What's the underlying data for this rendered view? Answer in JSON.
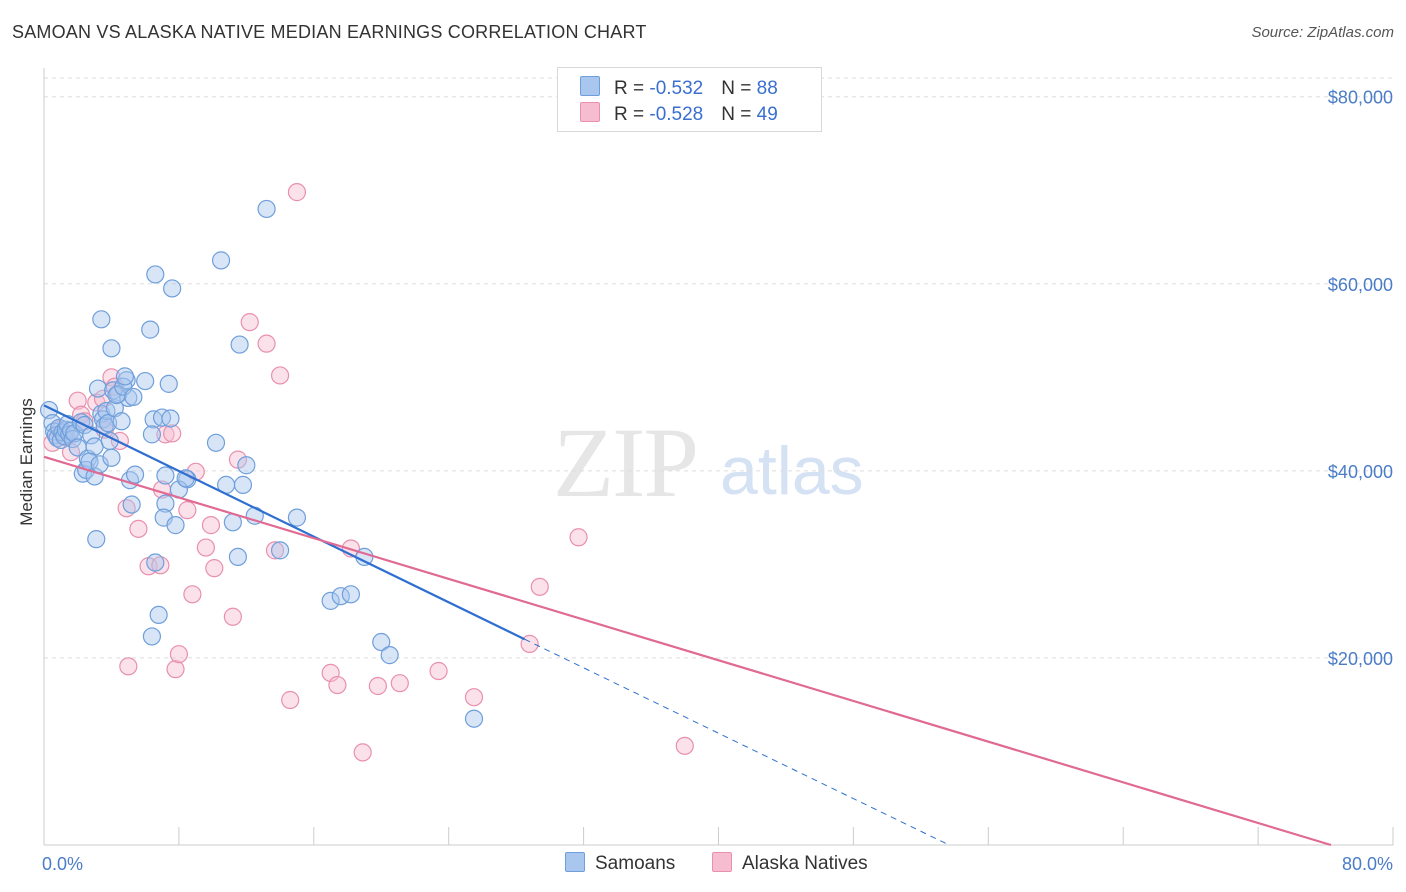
{
  "header": {
    "title": "SAMOAN VS ALASKA NATIVE MEDIAN EARNINGS CORRELATION CHART",
    "source": "Source: ZipAtlas.com"
  },
  "watermark": {
    "zip": "ZIP",
    "atlas": "atlas"
  },
  "legend": {
    "rows": [
      {
        "r_label": "R = ",
        "r_value": "-0.532",
        "n_label": "N = ",
        "n_value": "88"
      },
      {
        "r_label": "R = ",
        "r_value": "-0.528",
        "n_label": "N = ",
        "n_value": "49"
      }
    ]
  },
  "bottom_legend": {
    "samoans": "Samoans",
    "alaska": "Alaska Natives"
  },
  "colors": {
    "samoan_fill": "#a9c6ee",
    "samoan_stroke": "#6f9fdb",
    "samoan_line": "#2e6fd0",
    "alaska_fill": "#f6bcd0",
    "alaska_stroke": "#e890ae",
    "alaska_line": "#e06a93",
    "grid": "#dddddd",
    "tick_text": "#4a7cc7"
  },
  "chart_data": {
    "type": "scatter",
    "title": "SAMOAN VS ALASKA NATIVE MEDIAN EARNINGS CORRELATION CHART",
    "xlabel": "",
    "ylabel": "Median Earnings",
    "xlim": [
      0,
      80
    ],
    "ylim": [
      0,
      82000
    ],
    "x_tick_labels": [
      "0.0%",
      "80.0%"
    ],
    "y_ticks": [
      20000,
      40000,
      60000,
      80000
    ],
    "y_tick_labels": [
      "$20,000",
      "$40,000",
      "$60,000",
      "$80,000"
    ],
    "grid": true,
    "series": [
      {
        "name": "Samoans",
        "r": -0.532,
        "n": 88,
        "trend": {
          "x0": 0,
          "y0": 47000,
          "x1": 28.5,
          "y1": 22000,
          "dash_x1": 80,
          "dash_y1": -23000
        },
        "points": [
          [
            0.3,
            46.5
          ],
          [
            0.5,
            45.1
          ],
          [
            0.6,
            44.2
          ],
          [
            0.7,
            43.8
          ],
          [
            0.8,
            43.5
          ],
          [
            0.9,
            44.6
          ],
          [
            1.0,
            43.3
          ],
          [
            1.1,
            44.1
          ],
          [
            1.2,
            43.7
          ],
          [
            1.3,
            44.4
          ],
          [
            1.4,
            45.0
          ],
          [
            1.5,
            43.9
          ],
          [
            1.6,
            44.3
          ],
          [
            1.7,
            43.4
          ],
          [
            1.8,
            44.0
          ],
          [
            2.0,
            42.5
          ],
          [
            2.2,
            45.2
          ],
          [
            2.4,
            44.9
          ],
          [
            2.6,
            41.3
          ],
          [
            2.8,
            43.8
          ],
          [
            3.0,
            42.6
          ],
          [
            3.2,
            48.8
          ],
          [
            3.4,
            46.1
          ],
          [
            3.5,
            45.5
          ],
          [
            3.6,
            44.8
          ],
          [
            3.7,
            46.4
          ],
          [
            3.8,
            45.1
          ],
          [
            3.9,
            43.2
          ],
          [
            4.1,
            48.6
          ],
          [
            4.2,
            46.7
          ],
          [
            4.4,
            48.2
          ],
          [
            4.6,
            45.3
          ],
          [
            4.9,
            49.7
          ],
          [
            5.0,
            47.8
          ],
          [
            2.3,
            39.7
          ],
          [
            2.5,
            40.1
          ],
          [
            2.7,
            41.0
          ],
          [
            3.0,
            39.4
          ],
          [
            3.3,
            40.7
          ],
          [
            4.0,
            41.4
          ],
          [
            5.1,
            39.0
          ],
          [
            5.4,
            39.6
          ],
          [
            4.3,
            48.1
          ],
          [
            4.7,
            49.0
          ],
          [
            4.8,
            50.1
          ],
          [
            5.3,
            47.9
          ],
          [
            6.0,
            49.6
          ],
          [
            6.5,
            45.5
          ],
          [
            6.4,
            43.9
          ],
          [
            7.0,
            45.7
          ],
          [
            7.5,
            45.6
          ],
          [
            7.4,
            49.3
          ],
          [
            3.4,
            56.2
          ],
          [
            3.1,
            32.7
          ],
          [
            4.0,
            53.1
          ],
          [
            6.3,
            55.1
          ],
          [
            6.6,
            61.0
          ],
          [
            7.6,
            59.5
          ],
          [
            10.5,
            62.5
          ],
          [
            11.6,
            53.5
          ],
          [
            13.2,
            68.0
          ],
          [
            10.2,
            43.0
          ],
          [
            10.8,
            38.5
          ],
          [
            11.2,
            34.5
          ],
          [
            11.5,
            30.8
          ],
          [
            8.5,
            39.1
          ],
          [
            8.0,
            38.0
          ],
          [
            7.2,
            36.5
          ],
          [
            7.1,
            35.0
          ],
          [
            7.8,
            34.2
          ],
          [
            6.6,
            30.2
          ],
          [
            6.4,
            22.3
          ],
          [
            6.8,
            24.6
          ],
          [
            7.2,
            39.5
          ],
          [
            8.4,
            39.2
          ],
          [
            5.2,
            36.4
          ],
          [
            11.8,
            38.5
          ],
          [
            12.0,
            40.6
          ],
          [
            12.5,
            35.2
          ],
          [
            14.0,
            31.5
          ],
          [
            15.0,
            35.0
          ],
          [
            17.0,
            26.1
          ],
          [
            17.6,
            26.6
          ],
          [
            18.2,
            26.8
          ],
          [
            19.0,
            30.8
          ],
          [
            20.0,
            21.7
          ],
          [
            20.5,
            20.3
          ],
          [
            25.5,
            13.5
          ]
        ]
      },
      {
        "name": "Alaska Natives",
        "r": -0.528,
        "n": 49,
        "trend": {
          "x0": 0,
          "y0": 41500,
          "x1": 80,
          "y1": -2000
        },
        "points": [
          [
            0.5,
            43.0
          ],
          [
            1.0,
            44.5
          ],
          [
            1.3,
            43.6
          ],
          [
            1.6,
            42.0
          ],
          [
            2.0,
            47.5
          ],
          [
            2.2,
            46.0
          ],
          [
            2.4,
            45.3
          ],
          [
            3.1,
            47.3
          ],
          [
            3.5,
            47.7
          ],
          [
            3.6,
            44.4
          ],
          [
            4.0,
            50.0
          ],
          [
            4.2,
            49.0
          ],
          [
            4.5,
            43.2
          ],
          [
            4.9,
            36.0
          ],
          [
            5.0,
            19.1
          ],
          [
            5.6,
            33.8
          ],
          [
            6.2,
            29.8
          ],
          [
            6.9,
            29.9
          ],
          [
            7.0,
            38.0
          ],
          [
            7.2,
            43.9
          ],
          [
            7.6,
            44.0
          ],
          [
            7.8,
            18.8
          ],
          [
            8.0,
            20.4
          ],
          [
            8.5,
            35.8
          ],
          [
            8.8,
            26.8
          ],
          [
            9.0,
            39.9
          ],
          [
            9.6,
            31.8
          ],
          [
            9.9,
            34.2
          ],
          [
            10.1,
            29.6
          ],
          [
            11.2,
            24.4
          ],
          [
            11.5,
            41.2
          ],
          [
            12.2,
            55.9
          ],
          [
            13.2,
            53.6
          ],
          [
            13.7,
            31.5
          ],
          [
            14.0,
            50.2
          ],
          [
            14.6,
            15.5
          ],
          [
            15.0,
            69.8
          ],
          [
            17.0,
            18.4
          ],
          [
            17.4,
            17.1
          ],
          [
            18.2,
            31.7
          ],
          [
            18.9,
            9.9
          ],
          [
            19.8,
            17.0
          ],
          [
            21.1,
            17.3
          ],
          [
            23.4,
            18.6
          ],
          [
            25.5,
            15.8
          ],
          [
            28.8,
            21.5
          ],
          [
            29.4,
            27.6
          ],
          [
            31.7,
            32.9
          ],
          [
            38.0,
            10.6
          ]
        ]
      }
    ]
  }
}
